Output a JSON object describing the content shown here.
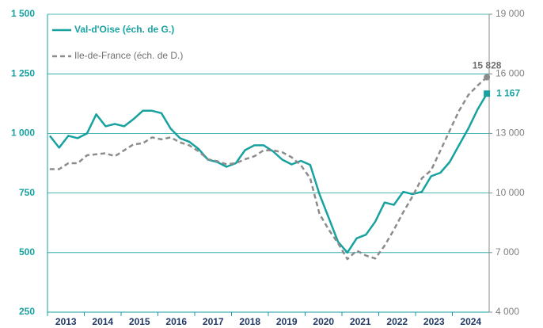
{
  "chart_data": {
    "type": "line",
    "categories": [
      "2013",
      null,
      null,
      null,
      "2014",
      null,
      null,
      null,
      "2015",
      null,
      null,
      null,
      "2016",
      null,
      null,
      null,
      "2017",
      null,
      null,
      null,
      "2018",
      null,
      null,
      null,
      "2019",
      null,
      null,
      null,
      "2020",
      null,
      null,
      null,
      "2021",
      null,
      null,
      null,
      "2022",
      null,
      null,
      null,
      "2023",
      null,
      null,
      null,
      "2024",
      null,
      null,
      null
    ],
    "series": [
      {
        "name": "Val-d'Oise (éch. de G.)",
        "color": "#17a2a0",
        "axis": "y",
        "values": [
          990,
          940,
          990,
          980,
          1000,
          1080,
          1030,
          1040,
          1030,
          1060,
          1095,
          1095,
          1085,
          1020,
          980,
          965,
          935,
          890,
          880,
          860,
          875,
          930,
          950,
          950,
          925,
          890,
          870,
          885,
          868,
          745,
          645,
          545,
          500,
          560,
          575,
          630,
          710,
          700,
          755,
          745,
          755,
          820,
          835,
          880,
          950,
          1020,
          1100,
          1167
        ],
        "value_labels": [
          null,
          null,
          null,
          null,
          null,
          null,
          null,
          null,
          null,
          null,
          null,
          null,
          null,
          null,
          null,
          null,
          null,
          null,
          null,
          null,
          null,
          null,
          null,
          null,
          null,
          null,
          null,
          null,
          null,
          null,
          null,
          null,
          null,
          null,
          null,
          null,
          null,
          null,
          null,
          null,
          null,
          null,
          null,
          null,
          null,
          null,
          null,
          "1 167"
        ]
      },
      {
        "name": "Ile-de-France (éch. de D.)",
        "color": "#8c8c8c",
        "axis": "y2",
        "values": [
          11200,
          11200,
          11500,
          11500,
          11900,
          11950,
          12000,
          11850,
          12150,
          12450,
          12500,
          12800,
          12700,
          12800,
          12550,
          12400,
          12100,
          11700,
          11600,
          11450,
          11500,
          11700,
          11850,
          12150,
          12150,
          12050,
          11800,
          11400,
          10740,
          8950,
          8150,
          7470,
          6670,
          7100,
          6850,
          6700,
          7350,
          8150,
          9030,
          9830,
          10740,
          11140,
          12140,
          13140,
          14130,
          14930,
          15410,
          15828
        ],
        "value_labels": [
          null,
          null,
          null,
          null,
          null,
          null,
          null,
          null,
          null,
          null,
          null,
          null,
          null,
          null,
          null,
          null,
          null,
          null,
          null,
          null,
          null,
          null,
          null,
          null,
          null,
          null,
          null,
          null,
          null,
          null,
          null,
          null,
          null,
          null,
          null,
          null,
          null,
          null,
          null,
          null,
          null,
          null,
          null,
          null,
          null,
          null,
          null,
          "15 828"
        ]
      }
    ],
    "ylim": [
      250,
      1500
    ],
    "yticks": [
      250,
      500,
      750,
      {
        "value": 1000,
        "label": "1 000"
      },
      {
        "value": 1250,
        "label": "1 250"
      },
      {
        "value": 1500,
        "label": "1 500"
      }
    ],
    "y2lim": [
      4000,
      19000
    ],
    "y2ticks": [
      {
        "value": 4000,
        "label": "4 000"
      },
      {
        "value": 7000,
        "label": "7 000"
      },
      {
        "value": 10000,
        "label": "10 000"
      },
      {
        "value": 13000,
        "label": "13 000"
      },
      {
        "value": 16000,
        "label": "16 000"
      },
      {
        "value": 19000,
        "label": "19 000"
      }
    ],
    "grid": true,
    "legend": "top-left"
  }
}
